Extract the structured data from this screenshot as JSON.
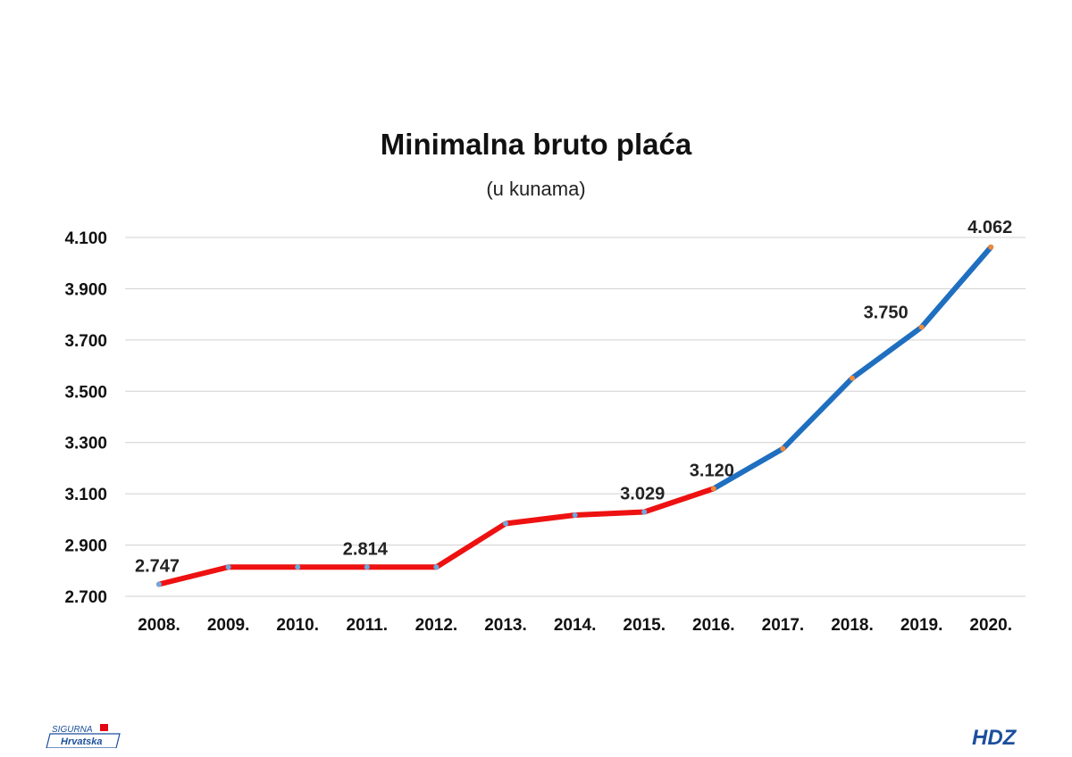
{
  "colors": {
    "series_early": "#ee1111",
    "series_late": "#1f6fc0",
    "marker_early": "#6fa8dc",
    "marker_late": "#f0883a",
    "grid": "#d0d0d0",
    "text": "#111111",
    "logo_blue": "#1c4f9c",
    "logo_red": "#e30613"
  },
  "chart_data": {
    "type": "line",
    "title": "Minimalna bruto plaća",
    "subtitle": "(u kunama)",
    "xlabel": "",
    "ylabel": "",
    "categories": [
      "2008.",
      "2009.",
      "2010.",
      "2011.",
      "2012.",
      "2013.",
      "2014.",
      "2015.",
      "2016.",
      "2017.",
      "2018.",
      "2019.",
      "2020."
    ],
    "values": [
      2747,
      2814,
      2814,
      2814,
      2814,
      2984,
      3017,
      3029,
      3120,
      3276,
      3551,
      3750,
      4062
    ],
    "series_split_index": 8,
    "ylim": [
      2700,
      4100
    ],
    "yticks": [
      2700,
      2900,
      3100,
      3300,
      3500,
      3700,
      3900,
      4100
    ],
    "ytick_labels": [
      "2.700",
      "2.900",
      "3.100",
      "3.300",
      "3.500",
      "3.700",
      "3.900",
      "4.100"
    ],
    "data_labels": [
      {
        "index": 0,
        "text": "2.747"
      },
      {
        "index": 3,
        "text": "2.814"
      },
      {
        "index": 7,
        "text": "3.029"
      },
      {
        "index": 8,
        "text": "3.120"
      },
      {
        "index": 11,
        "text": "3.750"
      },
      {
        "index": 12,
        "text": "4.062"
      }
    ],
    "grid": true,
    "legend": "none"
  },
  "logos": {
    "left_top": "SIGURNA",
    "left_bottom": "Hrvatska",
    "right": "HDZ"
  }
}
